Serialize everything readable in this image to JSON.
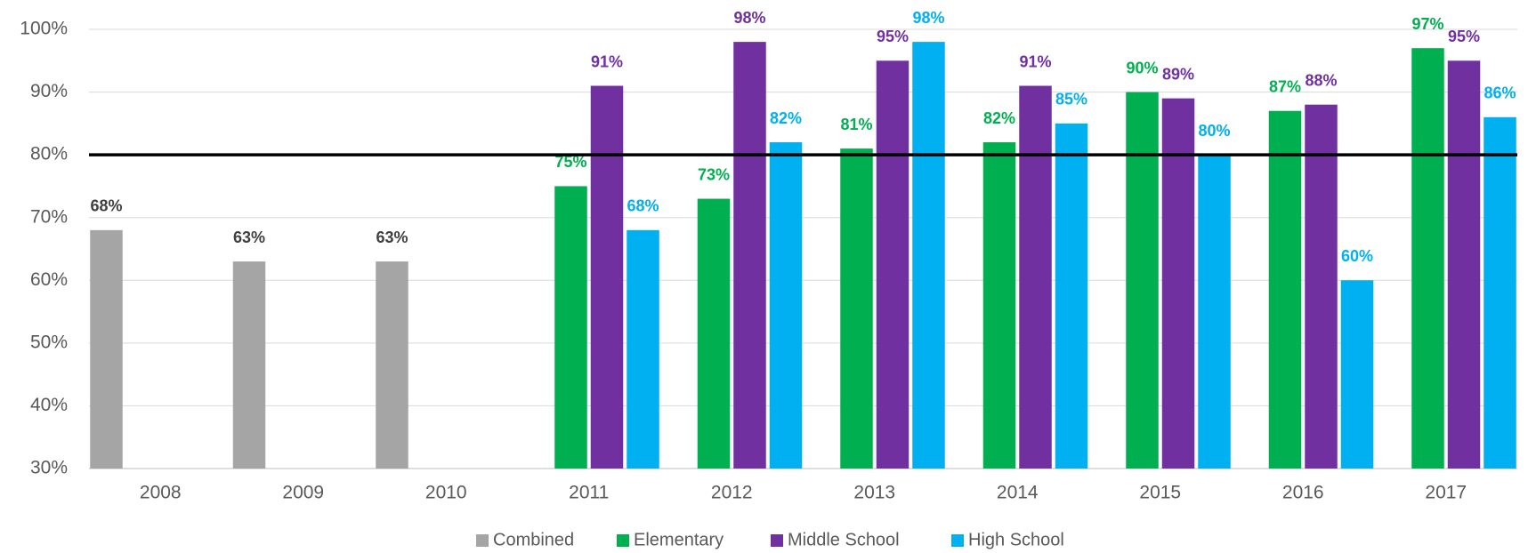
{
  "chart_data": {
    "type": "bar",
    "categories": [
      "2008",
      "2009",
      "2010",
      "2011",
      "2012",
      "2013",
      "2014",
      "2015",
      "2016",
      "2017"
    ],
    "series": [
      {
        "name": "Combined",
        "color": "#a5a5a5",
        "label_color": "#404040",
        "values": [
          68,
          63,
          63,
          null,
          null,
          null,
          null,
          null,
          null,
          null
        ],
        "value_labels": [
          "68%",
          "63%",
          "63%",
          null,
          null,
          null,
          null,
          null,
          null,
          null
        ]
      },
      {
        "name": "Elementary",
        "color": "#00b050",
        "label_color": "#00b050",
        "values": [
          null,
          null,
          null,
          75,
          73,
          81,
          82,
          90,
          87,
          97
        ],
        "value_labels": [
          null,
          null,
          null,
          "75%",
          "73%",
          "81%",
          "82%",
          "90%",
          "87%",
          "97%"
        ]
      },
      {
        "name": "Middle School",
        "color": "#7030a0",
        "label_color": "#7030a0",
        "values": [
          null,
          null,
          null,
          91,
          98,
          95,
          91,
          89,
          88,
          95
        ],
        "value_labels": [
          null,
          null,
          null,
          "91%",
          "98%",
          "95%",
          "91%",
          "89%",
          "88%",
          "95%"
        ]
      },
      {
        "name": "High School",
        "color": "#00b0f0",
        "label_color": "#00b0f0",
        "values": [
          null,
          null,
          null,
          68,
          82,
          98,
          85,
          80,
          60,
          86
        ],
        "value_labels": [
          null,
          null,
          null,
          "68%",
          "82%",
          "98%",
          "85%",
          "80%",
          "60%",
          "86%"
        ]
      }
    ],
    "ylim": [
      30,
      100
    ],
    "yticks": [
      {
        "value": 30,
        "label": "30%"
      },
      {
        "value": 40,
        "label": "40%"
      },
      {
        "value": 50,
        "label": "50%"
      },
      {
        "value": 60,
        "label": "60%"
      },
      {
        "value": 70,
        "label": "70%"
      },
      {
        "value": 80,
        "label": "80%"
      },
      {
        "value": 90,
        "label": "90%"
      },
      {
        "value": 100,
        "label": "100%"
      }
    ],
    "grid": true,
    "reference_line": 80,
    "legend": "bottom"
  }
}
